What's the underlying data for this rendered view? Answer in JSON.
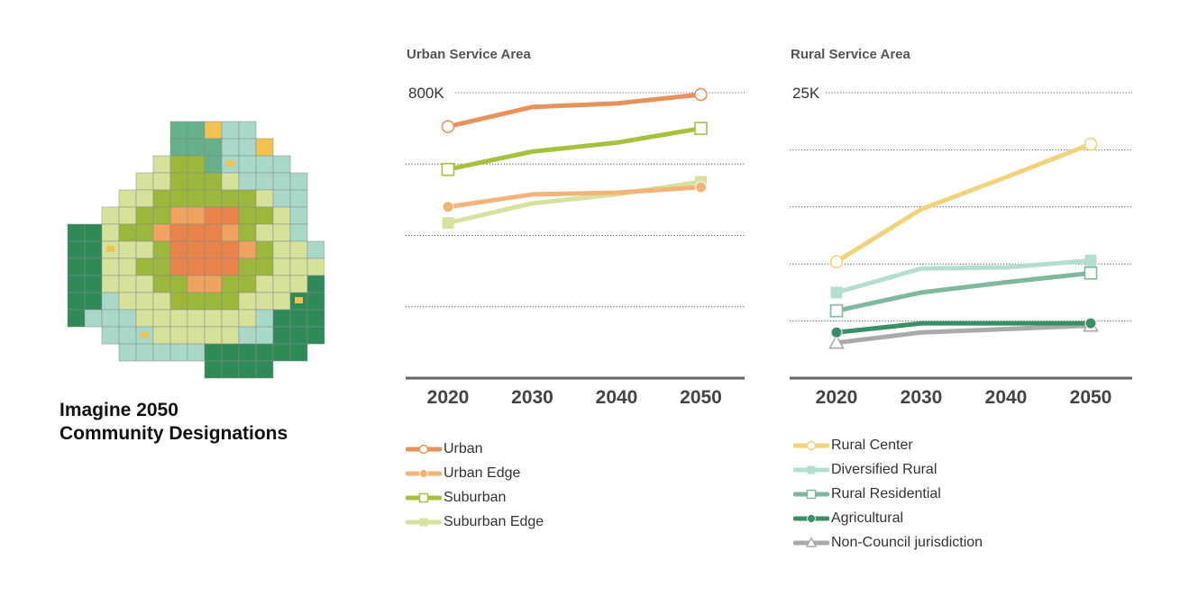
{
  "map": {
    "title_line1": "Imagine 2050",
    "title_line2": "Community Designations",
    "colors": {
      "agricultural": "#2e8b57",
      "rural_residential": "#66b08a",
      "diversified_rural": "#a8d8c8",
      "rural_center": "#f2c14e",
      "suburban_edge": "#d6e29a",
      "suburban": "#9cb83a",
      "urban_edge": "#f0a35e",
      "urban": "#e8844a",
      "boundary": "#888888"
    }
  },
  "chart_data": [
    {
      "type": "line",
      "title": "Urban Service Area",
      "y_top_label": "800K",
      "categories": [
        "2020",
        "2030",
        "2040",
        "2050"
      ],
      "ylim": [
        0,
        800000
      ],
      "grid": true,
      "legend_position": "bottom",
      "series": [
        {
          "name": "Urban",
          "values": [
            705000,
            760000,
            770000,
            795000
          ],
          "color": "#e8925a",
          "marker": "circle-open"
        },
        {
          "name": "Urban Edge",
          "values": [
            480000,
            515000,
            520000,
            535000
          ],
          "color": "#f2b477",
          "marker": "circle-filled"
        },
        {
          "name": "Suburban",
          "values": [
            585000,
            635000,
            660000,
            700000
          ],
          "color": "#a6c23c",
          "marker": "square-open"
        },
        {
          "name": "Suburban Edge",
          "values": [
            435000,
            490000,
            515000,
            550000
          ],
          "color": "#d5e39d",
          "marker": "square-filled"
        }
      ]
    },
    {
      "type": "line",
      "title": "Rural Service Area",
      "y_top_label": "25K",
      "categories": [
        "2020",
        "2030",
        "2040",
        "2050"
      ],
      "ylim": [
        0,
        25000
      ],
      "grid": true,
      "legend_position": "bottom",
      "series": [
        {
          "name": "Rural Center",
          "values": [
            10200,
            14800,
            17600,
            20500
          ],
          "color": "#f3d27a",
          "marker": "circle-open"
        },
        {
          "name": "Diversified Rural",
          "values": [
            7500,
            9600,
            9700,
            10300
          ],
          "color": "#b3dfd2",
          "marker": "square-filled"
        },
        {
          "name": "Rural Residential",
          "values": [
            5900,
            7500,
            8400,
            9200
          ],
          "color": "#7dba9b",
          "marker": "square-open"
        },
        {
          "name": "Agricultural",
          "values": [
            4000,
            4800,
            4800,
            4800
          ],
          "color": "#3a8f65",
          "marker": "circle-filled"
        },
        {
          "name": "Non-Council jurisdiction",
          "values": [
            3100,
            4000,
            4300,
            4600
          ],
          "color": "#aaaaaa",
          "marker": "triangle-open"
        }
      ]
    }
  ]
}
